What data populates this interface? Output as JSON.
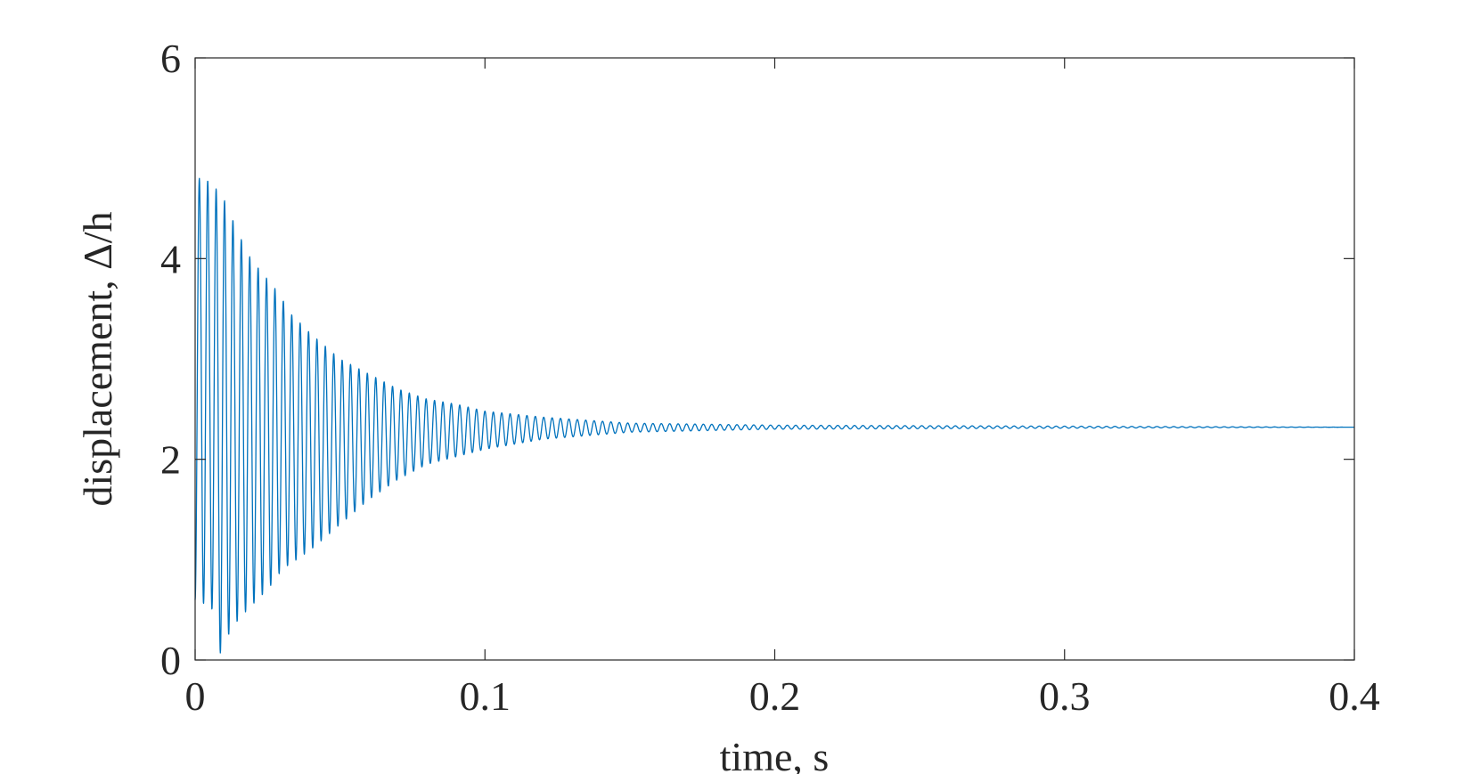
{
  "chart_data": {
    "type": "line",
    "title": "",
    "xlabel": "time, s",
    "ylabel": "displacement, Δ/h",
    "xlim": [
      0,
      0.4
    ],
    "ylim": [
      0,
      6
    ],
    "x_ticks": [
      0,
      0.1,
      0.2,
      0.3,
      0.4
    ],
    "x_tick_labels": [
      "0",
      "0.1",
      "0.2",
      "0.3",
      "0.4"
    ],
    "y_ticks": [
      0,
      2,
      4,
      6
    ],
    "y_tick_labels": [
      "0",
      "2",
      "4",
      "6"
    ],
    "grid": false,
    "legend": "none",
    "colors": {
      "series": "#0072BD",
      "axes": "#262626"
    },
    "series": [
      {
        "name": "",
        "description_of_shape": "damped oscillation about a steady value",
        "peak_values": [
          {
            "x": 0.0035,
            "y": 4.8
          },
          {
            "x": 0.0065,
            "y": 4.72
          },
          {
            "x": 0.0095,
            "y": 4.62
          },
          {
            "x": 0.014,
            "y": 4.32
          },
          {
            "x": 0.018,
            "y": 4.05
          },
          {
            "x": 0.022,
            "y": 3.9
          },
          {
            "x": 0.029,
            "y": 3.65
          },
          {
            "x": 0.033,
            "y": 3.45
          },
          {
            "x": 0.04,
            "y": 3.25
          },
          {
            "x": 0.05,
            "y": 3.0
          },
          {
            "x": 0.06,
            "y": 2.85
          },
          {
            "x": 0.07,
            "y": 2.7
          },
          {
            "x": 0.08,
            "y": 2.6
          },
          {
            "x": 0.09,
            "y": 2.55
          },
          {
            "x": 0.1,
            "y": 2.48
          },
          {
            "x": 0.12,
            "y": 2.42
          },
          {
            "x": 0.15,
            "y": 2.36
          },
          {
            "x": 0.2,
            "y": 2.34
          },
          {
            "x": 0.4,
            "y": 2.32
          }
        ],
        "trough_values": [
          {
            "x": 0.001,
            "y": 0.6
          },
          {
            "x": 0.006,
            "y": 0.5
          },
          {
            "x": 0.008,
            "y": 0.07
          },
          {
            "x": 0.01,
            "y": 0.07
          },
          {
            "x": 0.012,
            "y": 0.3
          },
          {
            "x": 0.018,
            "y": 0.5
          },
          {
            "x": 0.025,
            "y": 0.7
          },
          {
            "x": 0.03,
            "y": 0.9
          },
          {
            "x": 0.04,
            "y": 1.1
          },
          {
            "x": 0.05,
            "y": 1.35
          },
          {
            "x": 0.06,
            "y": 1.6
          },
          {
            "x": 0.07,
            "y": 1.8
          },
          {
            "x": 0.08,
            "y": 1.95
          },
          {
            "x": 0.1,
            "y": 2.1
          },
          {
            "x": 0.12,
            "y": 2.2
          },
          {
            "x": 0.15,
            "y": 2.27
          },
          {
            "x": 0.2,
            "y": 2.3
          },
          {
            "x": 0.4,
            "y": 2.32
          }
        ],
        "x_start": 0,
        "y_start": 0.6,
        "steady_state": 2.32,
        "oscillation_frequency_hz": 345,
        "decay_time_constant_s": 0.038
      }
    ]
  }
}
